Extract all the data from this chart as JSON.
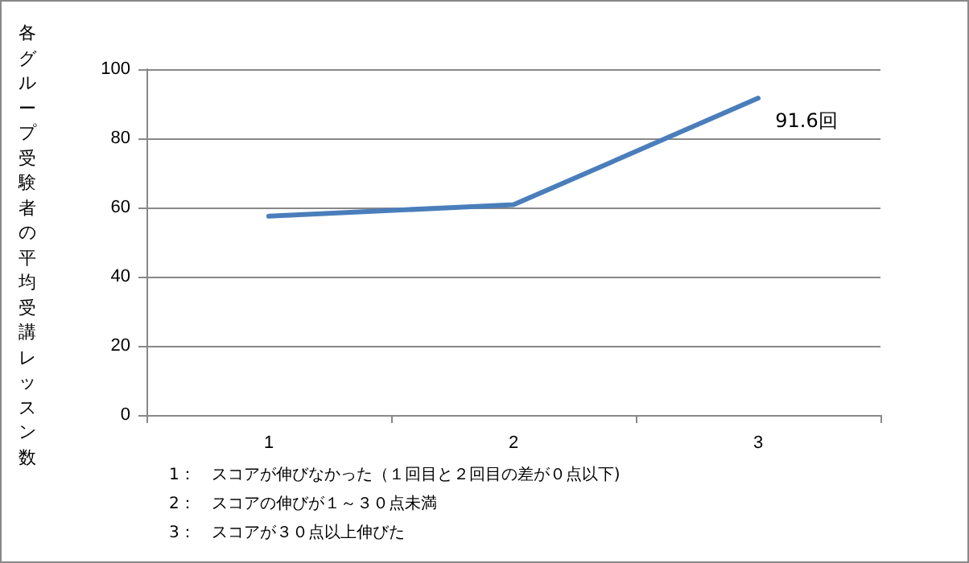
{
  "chart_data": {
    "type": "line",
    "ylabel": "各グループ受験者の平均受講レッスン数",
    "categories": [
      "1",
      "2",
      "3"
    ],
    "series": [
      {
        "color": "#4a7ebb",
        "values": [
          57.5,
          60.8,
          91.6
        ],
        "value_labels": [
          null,
          null,
          "91.6回"
        ]
      }
    ],
    "ylim": [
      0,
      100
    ],
    "yticks": [
      0,
      20,
      40,
      60,
      80,
      100
    ],
    "grid": "y",
    "marker": "none",
    "line_style": "solid",
    "annotations": [
      "1：　スコアが伸びなかった（１回目と２回目の差が０点以下)",
      "2：　スコアの伸びが１～３０点未満",
      "3：　スコアが３０点以上伸びた"
    ]
  }
}
